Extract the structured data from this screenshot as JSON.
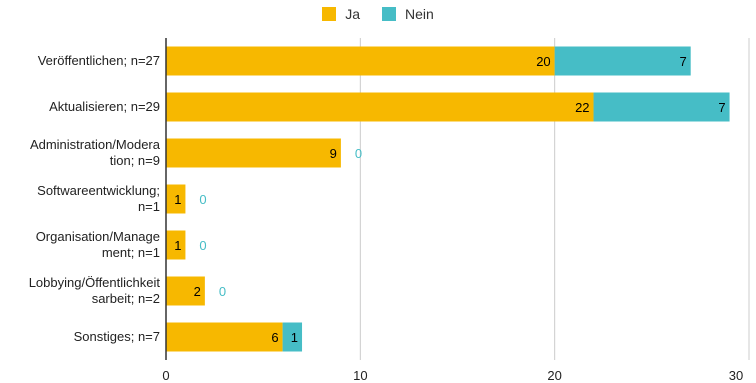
{
  "chart_data": {
    "type": "bar",
    "orientation": "horizontal",
    "stacked": true,
    "categories": [
      "Veröffentlichen; n=27",
      "Aktualisieren; n=29",
      "Administration/Modera\ntion; n=9",
      "Softwareentwicklung;\nn=1",
      "Organisation/Manage\nment; n=1",
      "Lobbying/Öffentlichkeit\nsarbeit; n=2",
      "Sonstiges; n=7"
    ],
    "series": [
      {
        "name": "Ja",
        "color": "#F7B800",
        "values": [
          20,
          22,
          9,
          1,
          1,
          2,
          6
        ]
      },
      {
        "name": "Nein",
        "color": "#46BDC6",
        "values": [
          7,
          7,
          0,
          0,
          0,
          0,
          1
        ]
      }
    ],
    "xlim": [
      0,
      30
    ],
    "xticks": [
      "0",
      "10",
      "20",
      "30"
    ],
    "grid": true,
    "legend_position": "top"
  },
  "colors": {
    "ja": "#F7B800",
    "nein": "#46BDC6",
    "label_dark": "#000000",
    "zero_label": "#46BDC6",
    "grid": "#cccccc",
    "axis": "#333333"
  }
}
